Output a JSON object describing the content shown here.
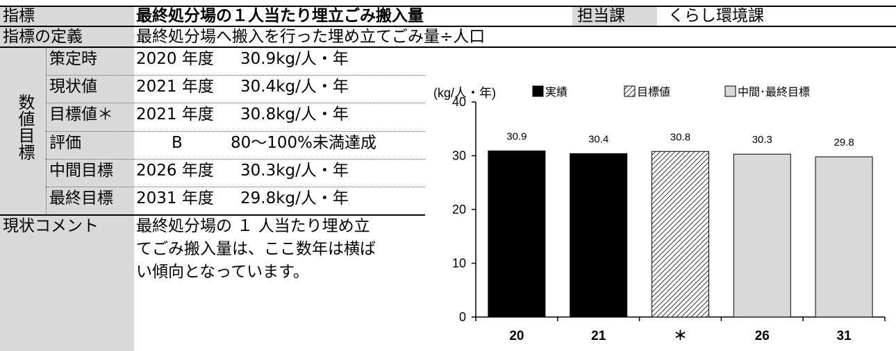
{
  "header": {
    "indicator_label": "指標",
    "indicator_value": "最終処分場の１人当たり埋立ごみ搬入量",
    "department_label": "担当課",
    "department_value": "くらし環境課"
  },
  "definition": {
    "label": "指標の定義",
    "value": "最終処分場へ搬入を行った埋め立てごみ量÷人口"
  },
  "numeric_section_label": "数値目標",
  "rows": [
    {
      "label": "策定時",
      "year": "2020 年度",
      "value": "30.9kg/人・年"
    },
    {
      "label": "現状値",
      "year": "2021 年度",
      "value": "30.4kg/人・年"
    },
    {
      "label": "目標値＊",
      "year": "2021 年度",
      "value": "30.8kg/人・年"
    },
    {
      "label": "評価",
      "year": "B",
      "value": "80～100%未満達成"
    },
    {
      "label": "中間目標",
      "year": "2026 年度",
      "value": "30.3kg/人・年"
    },
    {
      "label": "最終目標",
      "year": "2031 年度",
      "value": "29.8kg/人・年"
    }
  ],
  "comment": {
    "label": "現状コメント",
    "lines": [
      "最終処分場の １ 人当たり埋め立",
      "てごみ搬入量は、ここ数年は横ば",
      "い傾向となっています。"
    ]
  },
  "chart_data": {
    "type": "bar",
    "ylabel": "(kg/人・年)",
    "categories": [
      "20",
      "21",
      "＊",
      "26",
      "31"
    ],
    "values": [
      30.9,
      30.4,
      30.8,
      30.3,
      29.8
    ],
    "bar_types": [
      "actual",
      "actual",
      "target",
      "goal",
      "goal"
    ],
    "ylim": [
      0,
      40
    ],
    "yticks": [
      0,
      10,
      20,
      30,
      40
    ],
    "legend": [
      {
        "key": "actual",
        "label": "実績",
        "color": "#000000"
      },
      {
        "key": "target",
        "label": "目標値",
        "color": "hatched"
      },
      {
        "key": "goal",
        "label": "中間･最終目標",
        "color": "#d9d9d9"
      }
    ],
    "legend_position": "top",
    "grid": false
  }
}
